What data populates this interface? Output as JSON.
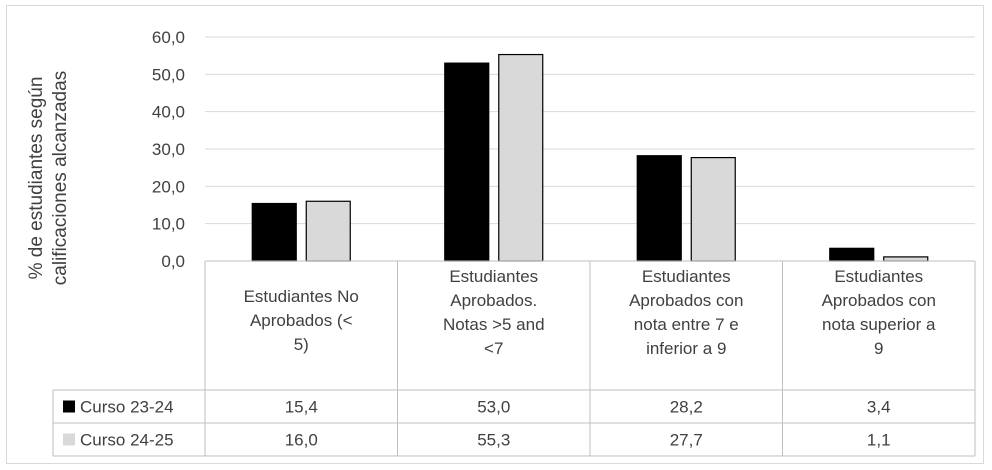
{
  "chart_data": {
    "type": "bar",
    "ylabel": "% de estudiantes según calificaciones alcanzadas",
    "ylabel_lines": [
      "% de estudiantes según",
      "calificaciones alcanzadas"
    ],
    "ylim": [
      0,
      60
    ],
    "yticks": [
      "0,0",
      "10,0",
      "20,0",
      "30,0",
      "40,0",
      "50,0",
      "60,0"
    ],
    "grid": true,
    "legend": "data-table-left",
    "categories": [
      "Estudiantes No Aprobados (< 5)",
      "Estudiantes Aprobados. Notas >5 and <7",
      "Estudiantes Aprobados con nota entre 7 e inferior a 9",
      "Estudiantes Aprobados con nota superior a 9"
    ],
    "category_lines": [
      [
        "Estudiantes No",
        "Aprobados (<",
        "5)"
      ],
      [
        "Estudiantes",
        "Aprobados.",
        "Notas >5 and",
        "<7"
      ],
      [
        "Estudiantes",
        "Aprobados con",
        "nota entre 7 e",
        "inferior a 9"
      ],
      [
        "Estudiantes",
        "Aprobados con",
        "nota superior a",
        "9"
      ]
    ],
    "series": [
      {
        "name": "Curso 23-24",
        "color": "#000000",
        "values": [
          15.4,
          53.0,
          28.2,
          3.4
        ],
        "labels": [
          "15,4",
          "53,0",
          "28,2",
          "3,4"
        ]
      },
      {
        "name": "Curso 24-25",
        "color": "#d9d9d9",
        "values": [
          16.0,
          55.3,
          27.7,
          1.1
        ],
        "labels": [
          "16,0",
          "55,3",
          "27,7",
          "1,1"
        ]
      }
    ]
  }
}
